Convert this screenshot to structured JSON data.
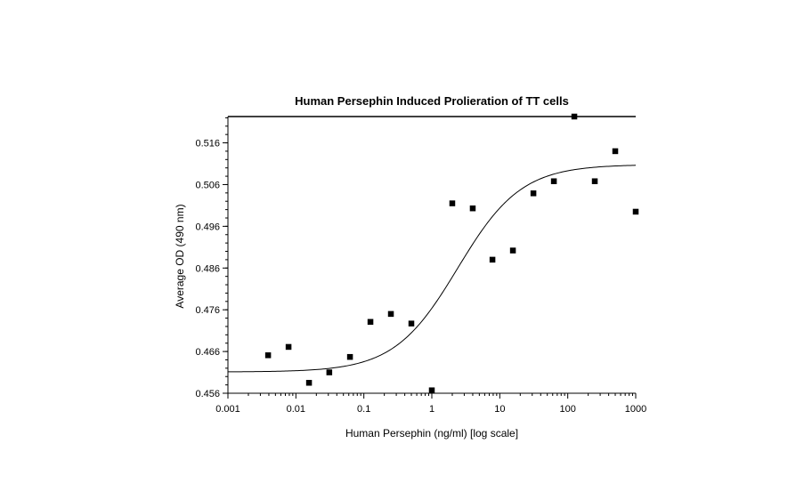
{
  "chart_data": {
    "type": "scatter",
    "title": "Human Persephin Induced Prolieration of TT cells",
    "xlabel": "Human Persephin (ng/ml) [log scale]",
    "ylabel": "Average OD (490 nm)",
    "x_scale": "log",
    "xlim": [
      0.001,
      1000
    ],
    "ylim": [
      0.456,
      0.5223
    ],
    "x_ticks": [
      "0.001",
      "0.01",
      "0.1",
      "1",
      "10",
      "100",
      "1000"
    ],
    "y_ticks": [
      "0.456",
      "0.466",
      "0.476",
      "0.486",
      "0.496",
      "0.506",
      "0.516"
    ],
    "grid": false,
    "legend": "none",
    "marker_color": "#000000",
    "points": [
      {
        "x": 0.0039,
        "y": 0.4651
      },
      {
        "x": 0.0078,
        "y": 0.4671
      },
      {
        "x": 0.0156,
        "y": 0.4585
      },
      {
        "x": 0.031,
        "y": 0.461
      },
      {
        "x": 0.0625,
        "y": 0.4647
      },
      {
        "x": 0.125,
        "y": 0.4731
      },
      {
        "x": 0.25,
        "y": 0.475
      },
      {
        "x": 0.5,
        "y": 0.4727
      },
      {
        "x": 1,
        "y": 0.4567
      },
      {
        "x": 2,
        "y": 0.5015
      },
      {
        "x": 4,
        "y": 0.5003
      },
      {
        "x": 7.8,
        "y": 0.488
      },
      {
        "x": 15.6,
        "y": 0.4902
      },
      {
        "x": 31.25,
        "y": 0.5039
      },
      {
        "x": 62.5,
        "y": 0.5068
      },
      {
        "x": 125,
        "y": 0.5223
      },
      {
        "x": 250,
        "y": 0.5068
      },
      {
        "x": 500,
        "y": 0.514
      },
      {
        "x": 1000,
        "y": 0.4995
      }
    ],
    "fit_curve": {
      "type": "4PL",
      "bottom": 0.4611,
      "top": 0.5108,
      "ec50": 2.4,
      "hill": 0.93
    }
  }
}
